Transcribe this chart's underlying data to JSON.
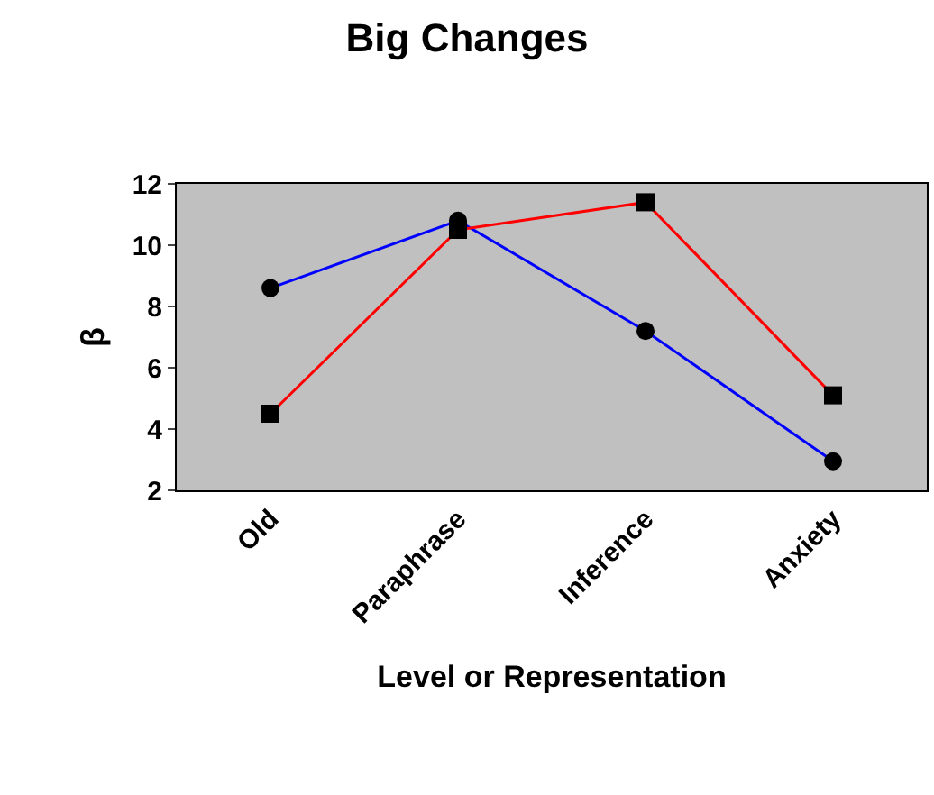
{
  "chart_data": {
    "type": "line",
    "title": "Big Changes",
    "xlabel": "Level or Representation",
    "ylabel": "β",
    "categories": [
      "Old",
      "Paraphrase",
      "Inference",
      "Anxiety"
    ],
    "series": [
      {
        "color": "#0000ff",
        "marker": "circle",
        "values": [
          8.6,
          10.8,
          7.2,
          2.95
        ]
      },
      {
        "color": "#ff0000",
        "marker": "square",
        "values": [
          4.5,
          10.5,
          11.4,
          5.1
        ]
      }
    ],
    "ylim": [
      2,
      12
    ],
    "yticks": [
      2,
      4,
      6,
      8,
      10,
      12
    ],
    "grid": false
  }
}
